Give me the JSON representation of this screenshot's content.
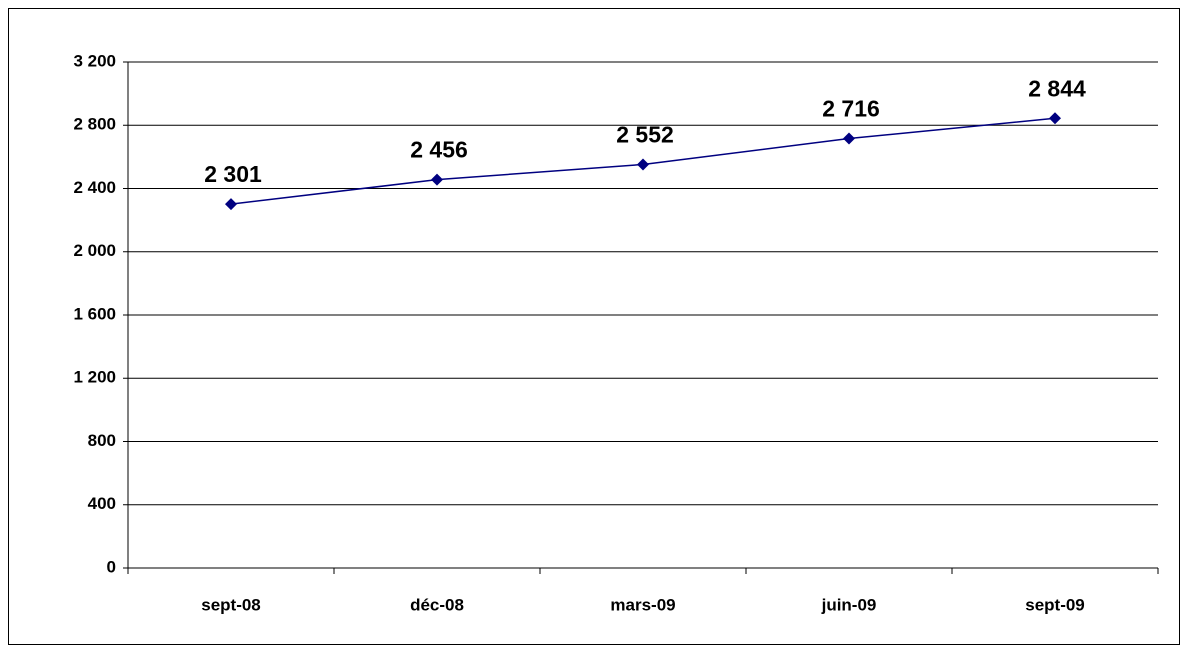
{
  "chart_data": {
    "type": "line",
    "categories": [
      "sept-08",
      "déc-08",
      "mars-09",
      "juin-09",
      "sept-09"
    ],
    "values": [
      2301,
      2456,
      2552,
      2716,
      2844
    ],
    "value_labels": [
      "2 301",
      "2 456",
      "2 552",
      "2 716",
      "2 844"
    ],
    "color": "#000080",
    "ylim": [
      0,
      3200
    ],
    "yticks": [
      0,
      400,
      800,
      {
        "value": 1200,
        "label": "1 200"
      },
      {
        "value": 1600,
        "label": "1 600"
      },
      {
        "value": 2000,
        "label": "2 000"
      },
      {
        "value": 2400,
        "label": "2 400"
      },
      {
        "value": 2800,
        "label": "2 800"
      },
      {
        "value": 3200,
        "label": "3 200"
      }
    ],
    "grid": true
  }
}
